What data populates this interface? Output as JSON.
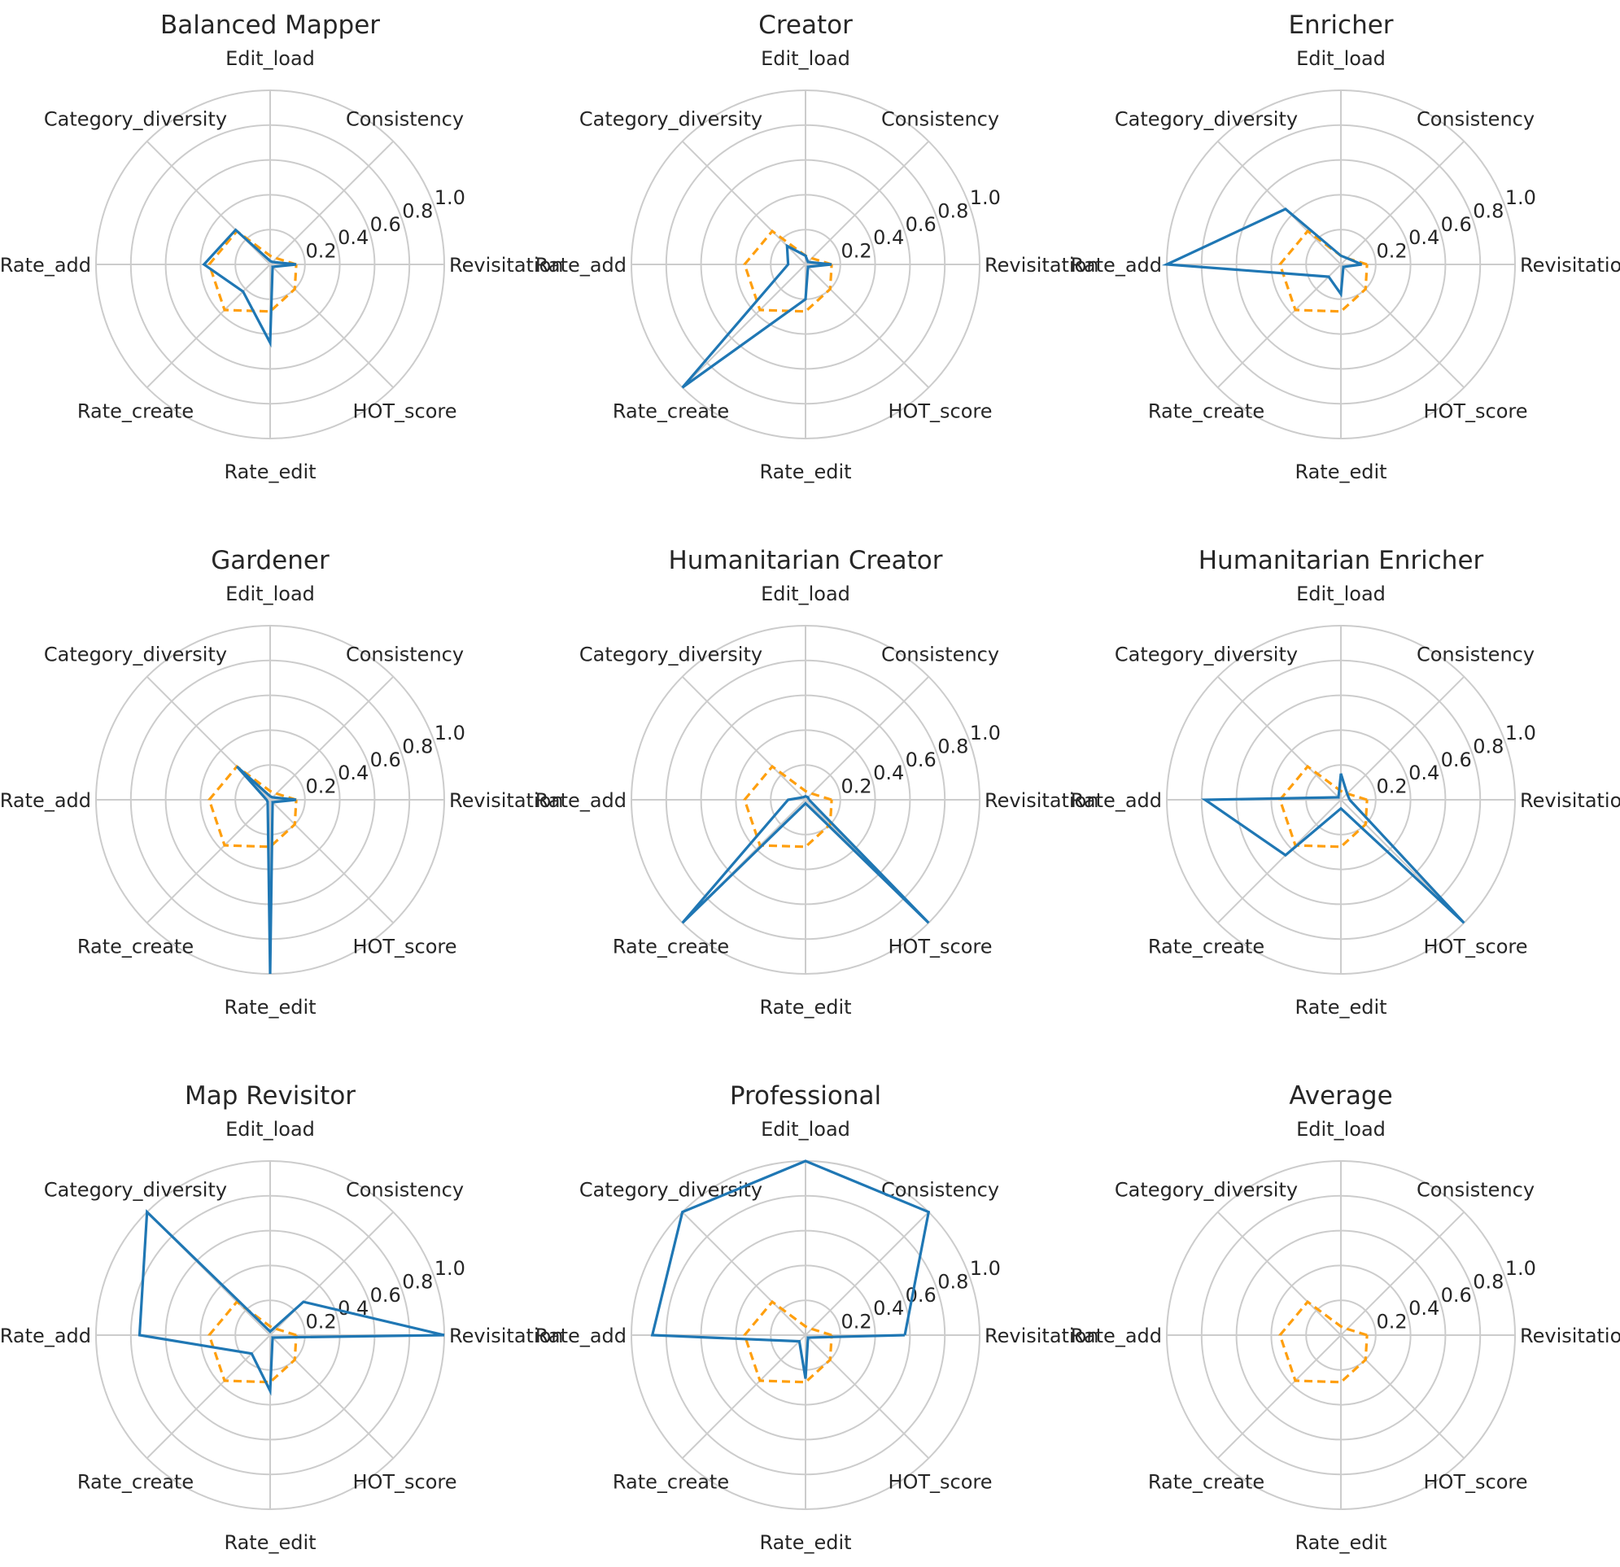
{
  "chart_data": {
    "type": "radar",
    "axes": [
      "Revisitation",
      "Consistency",
      "Edit_load",
      "Category_diversity",
      "Rate_add",
      "Rate_create",
      "Rate_edit",
      "HOT_score"
    ],
    "radial_ticks": [
      "0.2",
      "0.4",
      "0.6",
      "0.8",
      "1.0"
    ],
    "rlim": [
      0,
      1.0
    ],
    "grid": true,
    "colors": {
      "profile": "#1f77b4",
      "average": "#ff9f0e"
    },
    "average_values": [
      0.15,
      0.05,
      0.05,
      0.27,
      0.35,
      0.37,
      0.27,
      0.2
    ],
    "panels": [
      {
        "title": "Balanced Mapper",
        "values": [
          0.15,
          0.02,
          0.02,
          0.28,
          0.38,
          0.22,
          0.45,
          0.02
        ]
      },
      {
        "title": "Creator",
        "values": [
          0.15,
          0.02,
          0.05,
          0.15,
          0.1,
          1.0,
          0.2,
          0.02
        ]
      },
      {
        "title": "Enricher",
        "values": [
          0.12,
          0.05,
          0.05,
          0.45,
          1.0,
          0.1,
          0.17,
          0.02
        ]
      },
      {
        "title": "Gardener",
        "values": [
          0.15,
          0.02,
          0.02,
          0.27,
          0.02,
          0.02,
          1.0,
          0.02
        ]
      },
      {
        "title": "Humanitarian Creator",
        "values": [
          0.02,
          0.02,
          0.02,
          0.02,
          0.1,
          1.0,
          0.02,
          1.0
        ]
      },
      {
        "title": "Humanitarian Enricher",
        "values": [
          0.05,
          0.05,
          0.15,
          0.02,
          0.78,
          0.45,
          0.05,
          1.0
        ]
      },
      {
        "title": "Map Revisitor",
        "values": [
          1.0,
          0.27,
          0.02,
          1.0,
          0.75,
          0.15,
          0.32,
          0.02
        ]
      },
      {
        "title": "Professional",
        "values": [
          0.57,
          1.0,
          1.0,
          1.0,
          0.88,
          0.05,
          0.25,
          0.02
        ]
      },
      {
        "title": "Average",
        "values": []
      }
    ]
  }
}
